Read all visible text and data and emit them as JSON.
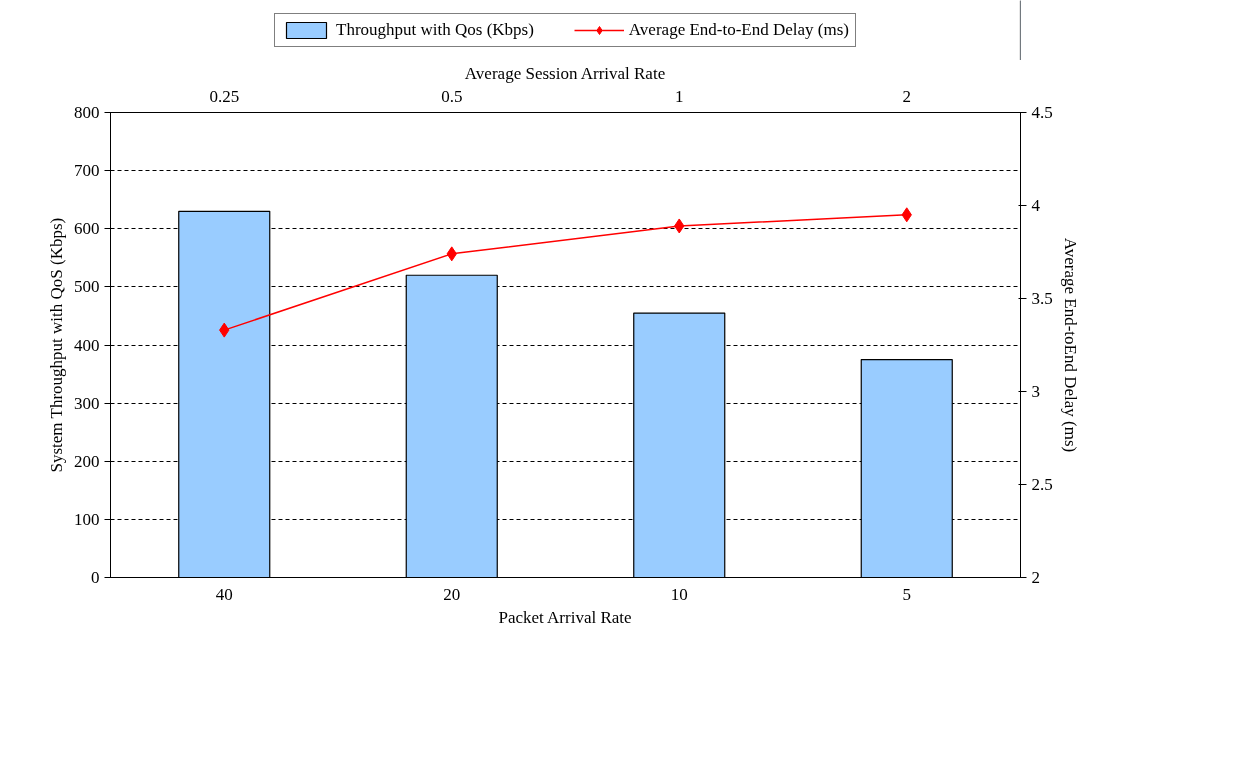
{
  "chart_data": {
    "type": "bar",
    "xlabel": "Packet Arrival Rate",
    "x2label": "Average Session Arrival Rate",
    "ylabel": "System Throughput with QoS (Kbps)",
    "y2label": "Average End-toEnd Delay (ms)",
    "categories": [
      "40",
      "20",
      "10",
      "5"
    ],
    "annotations": [
      "0.25",
      "0.5",
      "1",
      "2"
    ],
    "series": [
      {
        "name": "Throughput with Qos (Kbps)",
        "color": "#99ccff",
        "values": [
          630,
          520,
          455,
          375
        ]
      },
      {
        "name": "Average End-to-End Delay (ms)",
        "type": "line",
        "axis": "y2",
        "color": "#ff0000",
        "marker": "diamond",
        "line_style": "solid",
        "values": [
          3.33,
          3.74,
          3.89,
          3.95
        ]
      }
    ],
    "ylim": [
      0,
      800
    ],
    "yticks": [
      0,
      100,
      200,
      300,
      400,
      500,
      600,
      700,
      800
    ],
    "y2lim": [
      2,
      4.5
    ],
    "y2ticks": [
      2,
      2.5,
      3,
      3.5,
      4,
      4.5
    ],
    "grid": "y",
    "legend": "top"
  }
}
